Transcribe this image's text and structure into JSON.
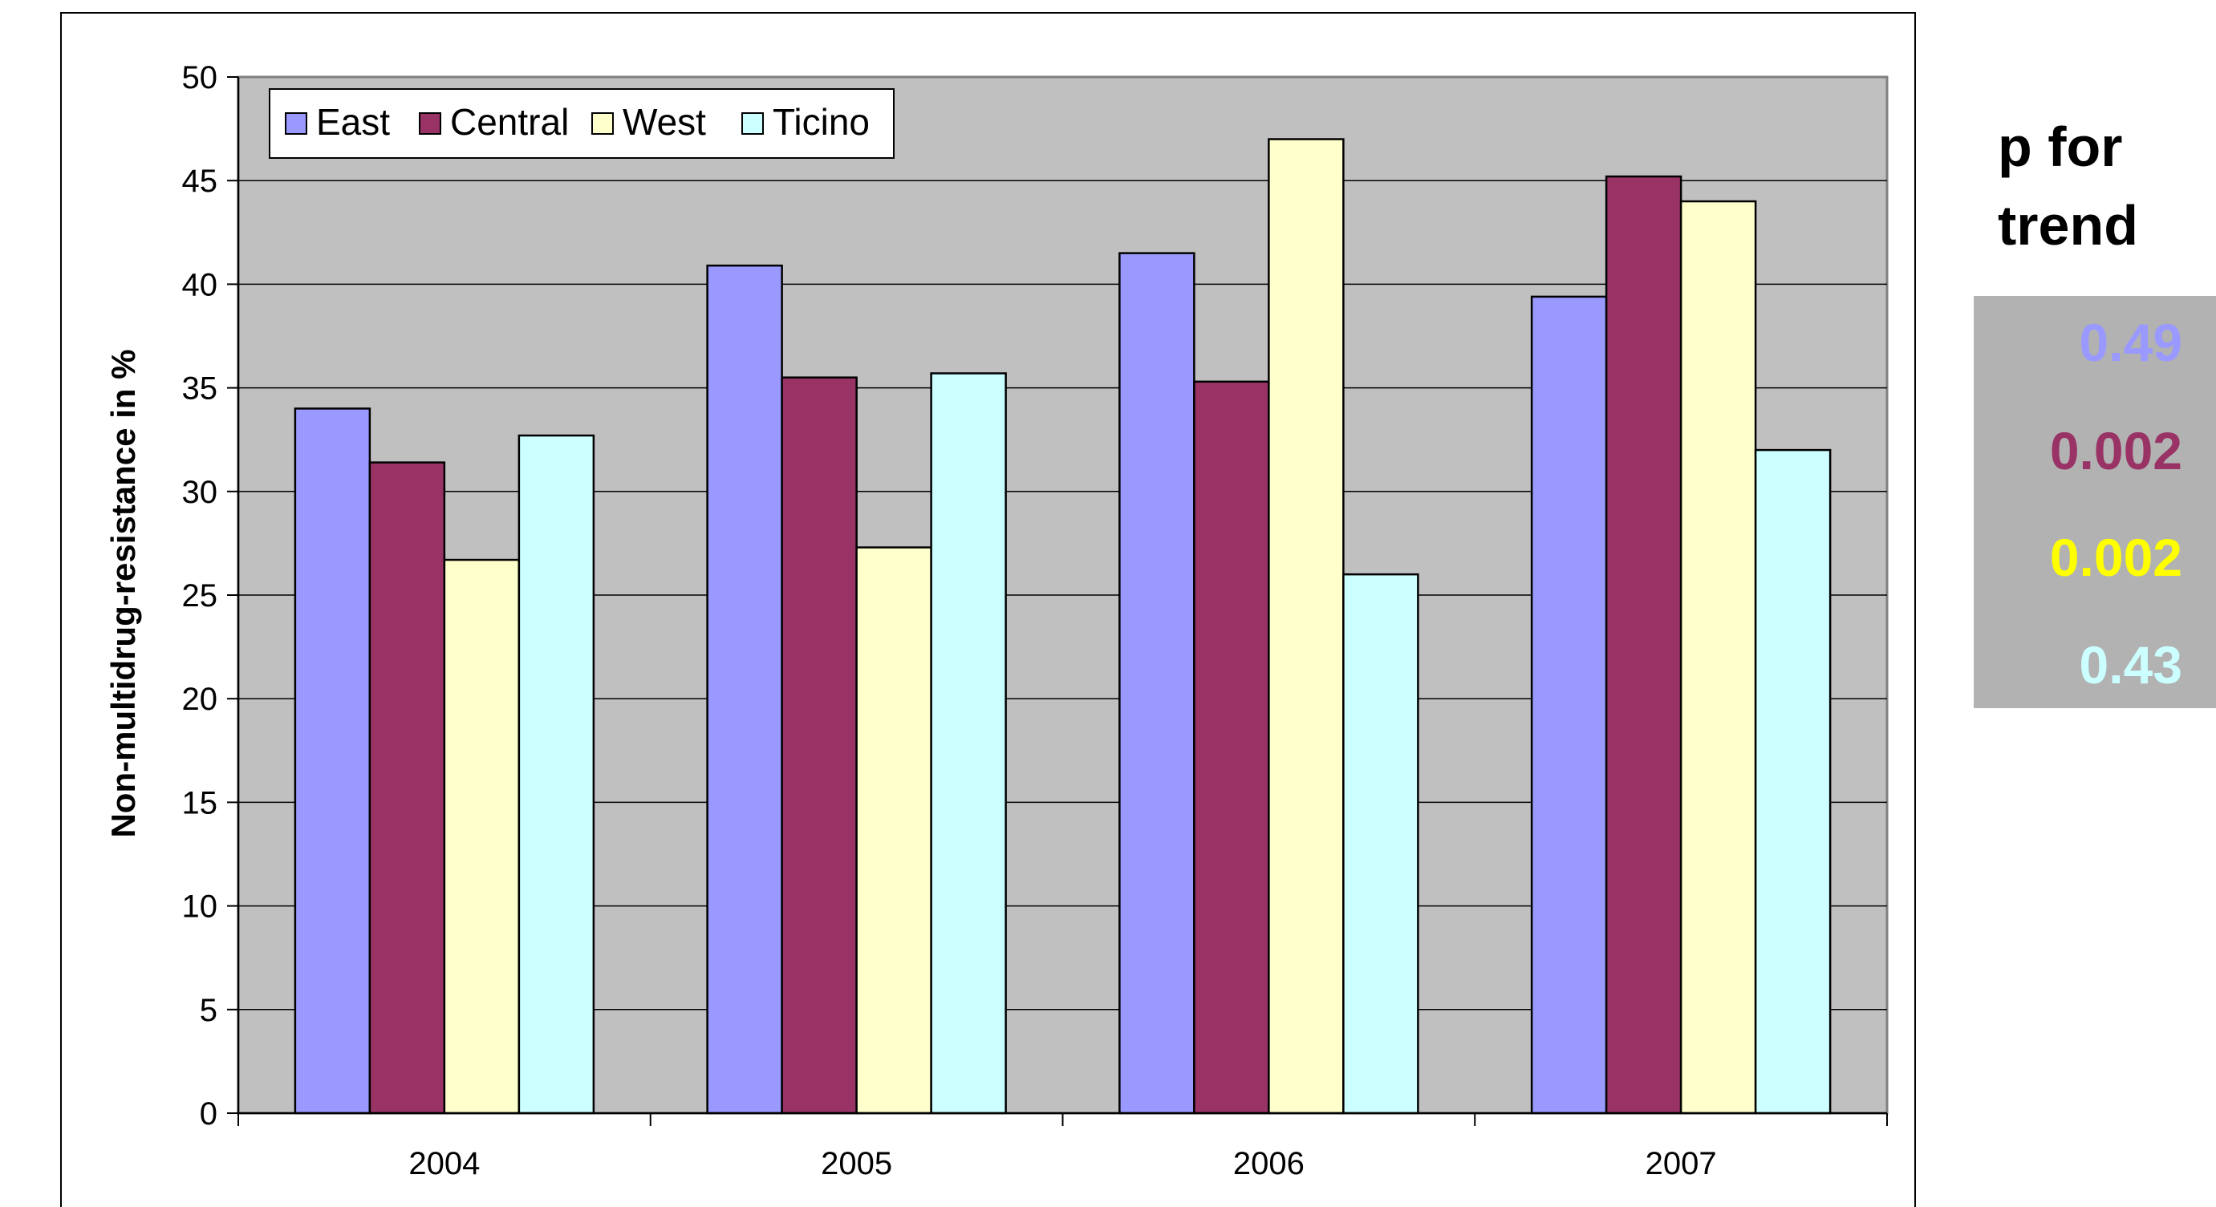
{
  "chart_data": {
    "type": "bar",
    "title": "",
    "xlabel": "",
    "ylabel": "Non-multidrug-resistance in %",
    "ylim": [
      0,
      50
    ],
    "yticks": [
      0,
      5,
      10,
      15,
      20,
      25,
      30,
      35,
      40,
      45,
      50
    ],
    "categories": [
      "2004",
      "2005",
      "2006",
      "2007"
    ],
    "grid": true,
    "legend_position": "top-left",
    "series": [
      {
        "name": "East",
        "color": "#9999FF",
        "values": [
          34.0,
          40.9,
          41.5,
          39.4
        ]
      },
      {
        "name": "Central",
        "color": "#993366",
        "values": [
          31.4,
          35.5,
          35.3,
          45.2
        ]
      },
      {
        "name": "West",
        "color": "#FFFFCC",
        "values": [
          26.7,
          27.3,
          47.0,
          44.0
        ]
      },
      {
        "name": "Ticino",
        "color": "#CCFFFF",
        "values": [
          32.7,
          35.7,
          26.0,
          32.0
        ]
      }
    ]
  },
  "trend": {
    "title_line1": "p for",
    "title_line2": "trend",
    "values": [
      {
        "text": "0.49",
        "color": "#9999FF"
      },
      {
        "text": "0.002",
        "color": "#993366"
      },
      {
        "text": "0.002",
        "color": "#FFFF00"
      },
      {
        "text": "0.43",
        "color": "#CCFFFF"
      }
    ]
  },
  "colors": {
    "plot_background": "#C0C0C0",
    "gridline": "#000000",
    "trend_box": "#B2B2B2"
  }
}
